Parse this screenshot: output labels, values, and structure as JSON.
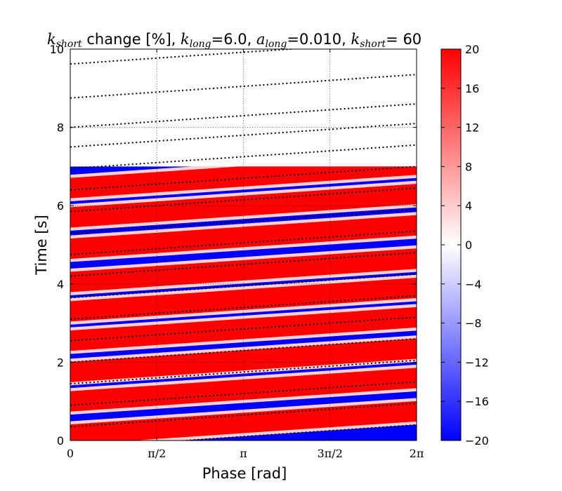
{
  "figure": {
    "title_parts": [
      {
        "text": "k",
        "math": true
      },
      {
        "text": "short",
        "math": true,
        "sub": true
      },
      {
        "text": " change [%], ",
        "math": false
      },
      {
        "text": "k",
        "math": true
      },
      {
        "text": "long",
        "math": true,
        "sub": true
      },
      {
        "text": "=6.0, ",
        "math": false
      },
      {
        "text": "a",
        "math": true
      },
      {
        "text": "long",
        "math": true,
        "sub": true
      },
      {
        "text": "=0.010, ",
        "math": false
      },
      {
        "text": "k",
        "math": true
      },
      {
        "text": "short",
        "math": true,
        "sub": true
      },
      {
        "text": "= 60",
        "math": false
      }
    ]
  },
  "chart_data": {
    "type": "heatmap",
    "title": "k_short change [%], k_long=6.0, a_long=0.010, k_short= 60",
    "xlabel": "Phase [rad]",
    "ylabel": "Time [s]",
    "xlim": [
      0,
      6.2832
    ],
    "ylim": [
      0,
      10
    ],
    "x_ticks": [
      {
        "value": 0,
        "label": "0"
      },
      {
        "value": 1.5708,
        "label": "π/2"
      },
      {
        "value": 3.1416,
        "label": "π"
      },
      {
        "value": 4.7124,
        "label": "3π/2"
      },
      {
        "value": 6.2832,
        "label": "2π"
      }
    ],
    "y_ticks": [
      0,
      2,
      4,
      6,
      8,
      10
    ],
    "grid": true,
    "data_time_range": [
      0,
      7
    ],
    "colormap": "bwr",
    "color_low": "#0000ff",
    "color_mid": "#ffffff",
    "color_high": "#ff0000",
    "clim": [
      -20,
      20
    ],
    "colorbar_ticks": [
      20,
      16,
      12,
      8,
      4,
      0,
      -4,
      -8,
      -12,
      -16,
      -20
    ],
    "colorbar_tick_labels": [
      "20",
      "16",
      "12",
      "8",
      "4",
      "0",
      "−4",
      "−8",
      "−12",
      "−16",
      "−20"
    ],
    "band_slope_s_per_rad": 0.095,
    "red_band_centers_s": [
      0.15,
      1.0,
      1.75,
      2.55,
      3.3,
      4.05,
      4.9,
      5.7,
      6.45
    ],
    "band_half_width_s": 0.26,
    "dotted_lines": {
      "style": "dotted",
      "color": "#000000",
      "slope_s_per_rad": 0.0955,
      "intercepts_s": [
        -0.2,
        0.35,
        0.9,
        1.45,
        2.0,
        2.55,
        3.1,
        3.65,
        4.2,
        4.75,
        5.3,
        5.85,
        6.4,
        6.95,
        7.5,
        8.0,
        8.75,
        9.62
      ]
    }
  }
}
